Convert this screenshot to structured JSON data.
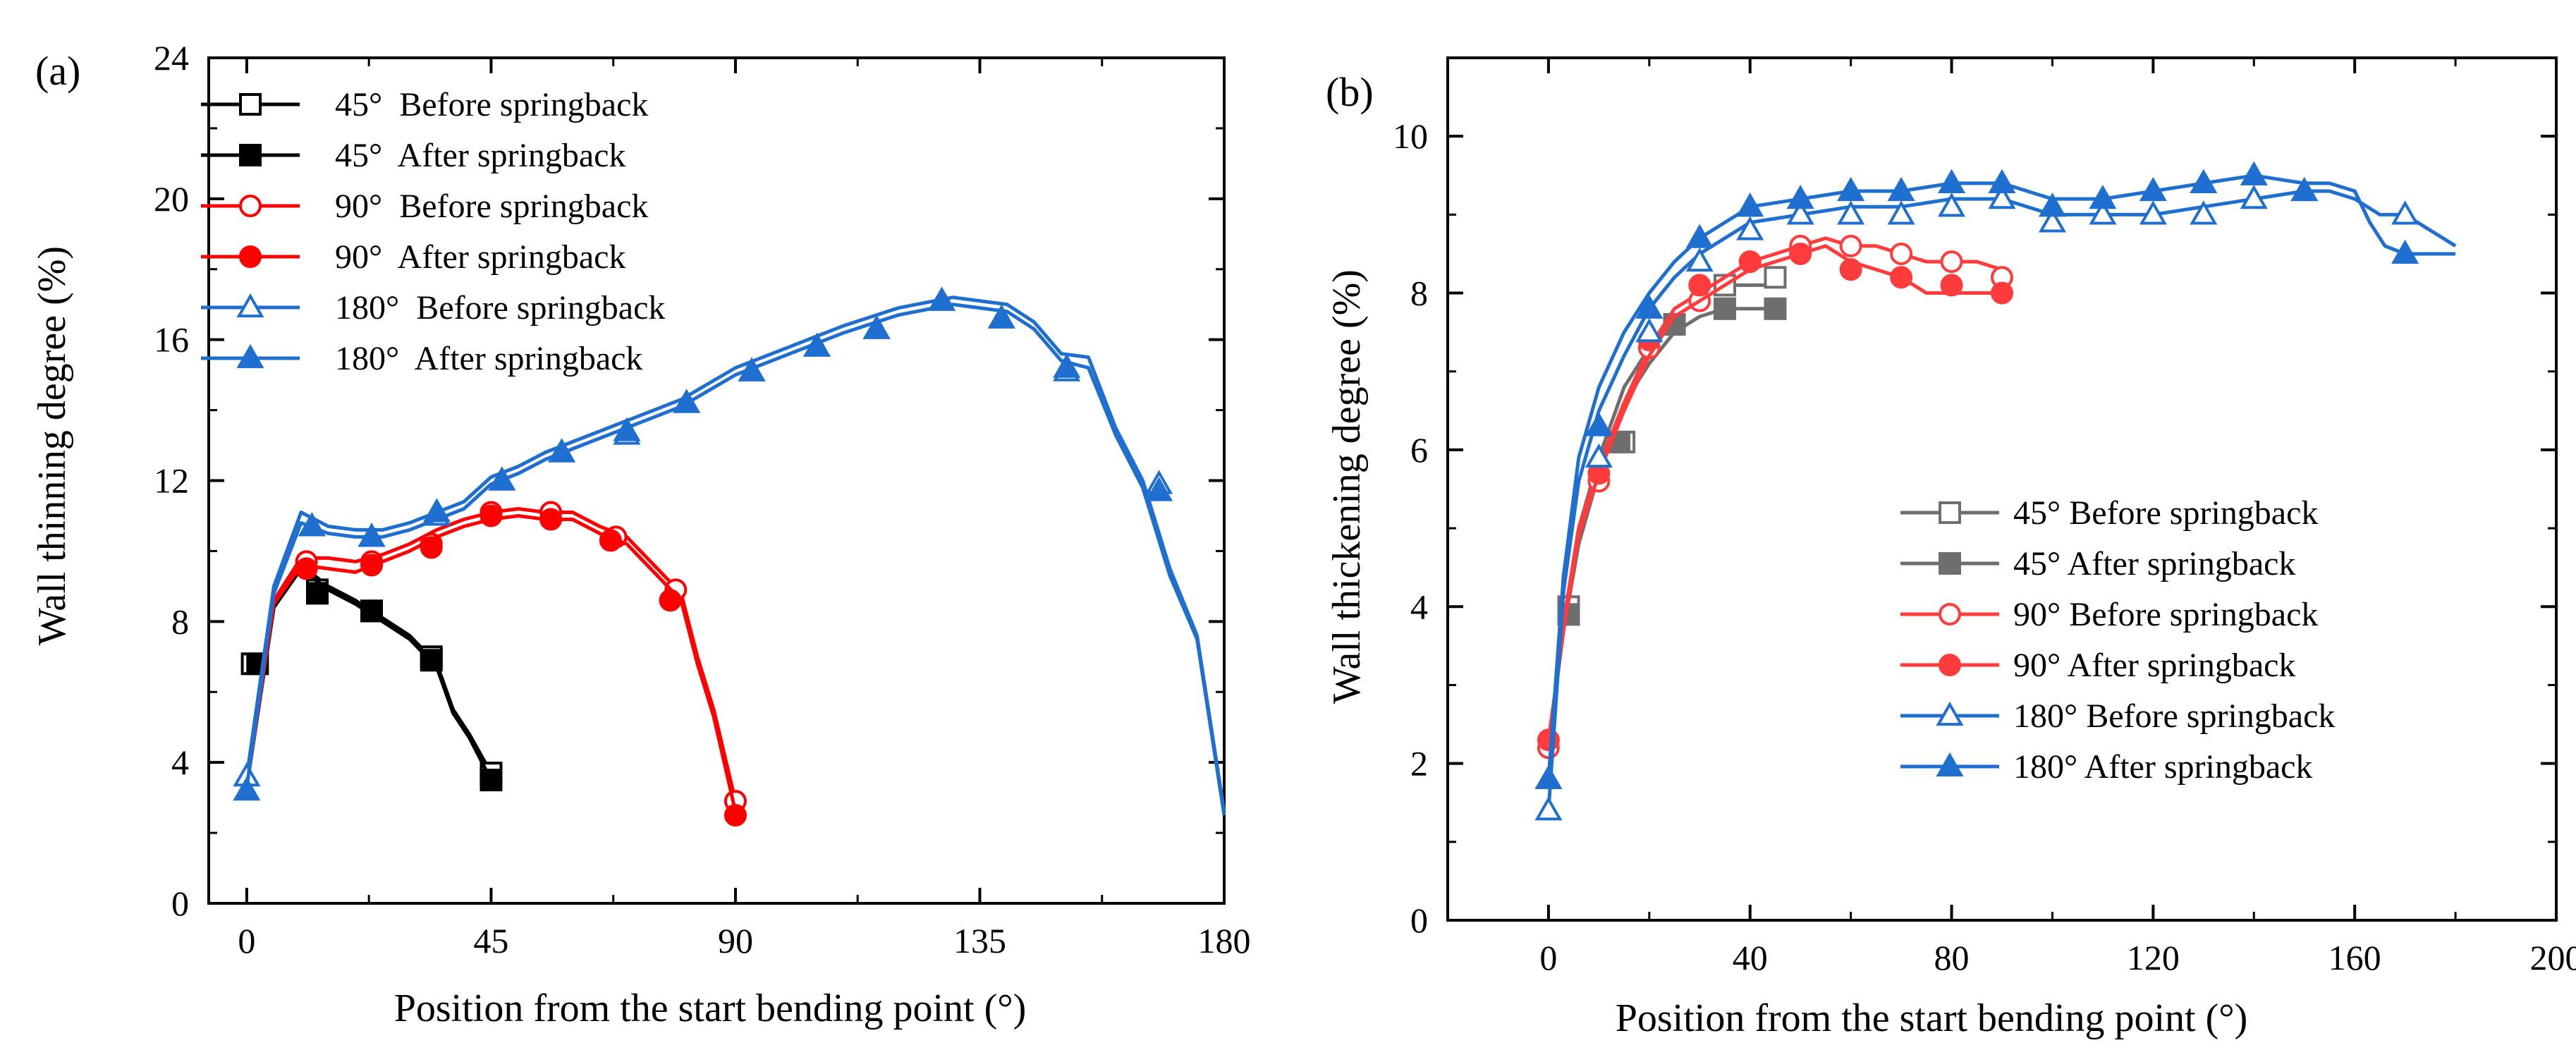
{
  "chart_data": [
    {
      "type": "line",
      "panel_label": "(a)",
      "xlabel": "Position from the start bending point (°)",
      "ylabel": "Wall thinning degree (%)",
      "xlim": [
        -7,
        180
      ],
      "ylim": [
        0,
        24
      ],
      "xticks": [
        0,
        45,
        90,
        135,
        180
      ],
      "yticks": [
        0,
        4,
        8,
        12,
        16,
        20,
        24
      ],
      "grid": false,
      "legend_position": "top-left",
      "series": [
        {
          "name": "45°  Before springback",
          "color": "#000000",
          "marker": "square",
          "filled": false,
          "x": [
            0,
            5,
            10,
            15,
            20,
            25,
            30,
            35,
            38,
            41,
            45
          ],
          "y": [
            3.4,
            8.5,
            9.6,
            9.0,
            8.6,
            8.1,
            7.6,
            6.8,
            5.5,
            4.8,
            3.7
          ]
        },
        {
          "name": "45°  After springback",
          "color": "#000000",
          "marker": "square",
          "filled": true,
          "x": [
            0,
            5,
            10,
            15,
            20,
            25,
            30,
            35,
            38,
            41,
            45
          ],
          "y": [
            3.3,
            8.4,
            9.5,
            8.9,
            8.5,
            8.0,
            7.5,
            6.7,
            5.4,
            4.7,
            3.5
          ]
        },
        {
          "name": "90°  Before springback",
          "color": "#ff0000",
          "marker": "circle",
          "filled": false,
          "x": [
            0,
            5,
            10,
            15,
            20,
            25,
            30,
            35,
            40,
            45,
            50,
            55,
            60,
            65,
            70,
            75,
            80,
            83,
            86,
            90
          ],
          "y": [
            3.4,
            8.6,
            9.8,
            9.8,
            9.7,
            9.9,
            10.2,
            10.6,
            10.9,
            11.1,
            11.2,
            11.1,
            11.1,
            10.7,
            10.4,
            9.6,
            8.8,
            7.0,
            5.5,
            2.9
          ]
        },
        {
          "name": "90°  After springback",
          "color": "#ff0000",
          "marker": "circle",
          "filled": true,
          "x": [
            0,
            5,
            10,
            15,
            20,
            25,
            30,
            35,
            40,
            45,
            50,
            55,
            60,
            65,
            70,
            75,
            80,
            83,
            86,
            90
          ],
          "y": [
            3.3,
            8.5,
            9.6,
            9.5,
            9.4,
            9.7,
            10.0,
            10.4,
            10.7,
            10.9,
            11.0,
            10.9,
            10.9,
            10.5,
            10.2,
            9.4,
            8.6,
            6.8,
            5.3,
            2.6
          ]
        },
        {
          "name": "180°  Before springback",
          "color": "#1f6fd0",
          "marker": "triangle",
          "filled": false,
          "x": [
            0,
            5,
            10,
            15,
            20,
            25,
            30,
            35,
            40,
            45,
            50,
            55,
            60,
            70,
            80,
            90,
            100,
            110,
            120,
            130,
            140,
            145,
            150,
            155,
            160,
            165,
            170,
            175,
            180
          ],
          "y": [
            3.6,
            9.0,
            11.1,
            10.7,
            10.6,
            10.6,
            10.8,
            11.1,
            11.4,
            12.1,
            12.4,
            12.8,
            13.1,
            13.7,
            14.3,
            15.2,
            15.8,
            16.4,
            16.9,
            17.2,
            17.0,
            16.5,
            15.6,
            15.5,
            13.5,
            12.0,
            9.5,
            7.6,
            2.6
          ]
        },
        {
          "name": "180°  After springback",
          "color": "#1f6fd0",
          "marker": "triangle",
          "filled": true,
          "x": [
            0,
            5,
            10,
            15,
            20,
            25,
            30,
            35,
            40,
            45,
            50,
            55,
            60,
            70,
            80,
            90,
            100,
            110,
            120,
            130,
            140,
            145,
            150,
            155,
            160,
            165,
            170,
            175,
            180
          ],
          "y": [
            3.3,
            8.8,
            10.8,
            10.5,
            10.4,
            10.4,
            10.6,
            10.9,
            11.2,
            11.9,
            12.2,
            12.6,
            12.9,
            13.5,
            14.1,
            15.0,
            15.6,
            16.2,
            16.7,
            17.0,
            16.8,
            16.3,
            15.4,
            15.2,
            13.3,
            11.8,
            9.3,
            7.5,
            2.5
          ]
        }
      ],
      "markers": {
        "45°  Before springback": {
          "x": [
            1,
            13,
            23,
            34,
            45
          ],
          "y": [
            6.8,
            8.9,
            8.3,
            7.0,
            3.7
          ]
        },
        "45°  After springback": {
          "x": [
            2,
            13,
            23,
            34,
            45
          ],
          "y": [
            6.8,
            8.8,
            8.3,
            6.9,
            3.5
          ]
        },
        "90°  Before springback": {
          "x": [
            11,
            23,
            34,
            45,
            56,
            68,
            79,
            90
          ],
          "y": [
            9.7,
            9.7,
            10.2,
            11.1,
            11.1,
            10.4,
            8.9,
            2.9
          ]
        },
        "90°  After springback": {
          "x": [
            11,
            23,
            34,
            45,
            56,
            67,
            78,
            90
          ],
          "y": [
            9.5,
            9.6,
            10.1,
            11.0,
            10.9,
            10.3,
            8.6,
            2.5
          ]
        },
        "180°  Before springback": {
          "x": [
            0,
            12,
            23,
            35,
            47,
            58,
            70,
            81,
            93,
            105,
            116,
            128,
            139,
            151,
            168
          ],
          "y": [
            3.6,
            10.7,
            10.4,
            11.0,
            12.0,
            12.8,
            13.3,
            14.2,
            15.1,
            15.8,
            16.3,
            17.1,
            16.6,
            15.1,
            11.9
          ]
        },
        "180°  After springback": {
          "x": [
            0,
            12,
            23,
            35,
            47,
            58,
            70,
            81,
            93,
            105,
            116,
            128,
            139,
            151,
            168
          ],
          "y": [
            3.2,
            10.7,
            10.4,
            11.1,
            12.0,
            12.8,
            13.4,
            14.2,
            15.1,
            15.8,
            16.3,
            17.1,
            16.6,
            15.2,
            11.7
          ]
        }
      }
    },
    {
      "type": "line",
      "panel_label": "(b)",
      "xlabel": "Position from the start bending point (°)",
      "ylabel": "Wall thickening degree (%)",
      "xlim": [
        -20,
        200
      ],
      "ylim": [
        0,
        11
      ],
      "xticks": [
        0,
        40,
        80,
        120,
        160,
        200
      ],
      "yticks": [
        0,
        2,
        4,
        6,
        8,
        10
      ],
      "grid": false,
      "legend_position": "bottom-right",
      "series": [
        {
          "name": "45° Before springback",
          "color": "#6e6e6e",
          "marker": "square",
          "filled": false,
          "x": [
            0,
            3,
            6,
            10,
            15,
            20,
            25,
            30,
            35,
            40,
            45
          ],
          "y": [
            2.2,
            3.8,
            5.0,
            5.9,
            6.8,
            7.3,
            7.7,
            7.9,
            8.1,
            8.1,
            8.1
          ]
        },
        {
          "name": "45° After springback",
          "color": "#6e6e6e",
          "marker": "square",
          "filled": true,
          "x": [
            0,
            3,
            6,
            10,
            15,
            20,
            25,
            30,
            35,
            40,
            45
          ],
          "y": [
            2.2,
            3.7,
            4.8,
            5.7,
            6.6,
            7.1,
            7.5,
            7.7,
            7.8,
            7.8,
            7.8
          ]
        },
        {
          "name": "90° Before springback",
          "color": "#ff3b3b",
          "marker": "circle",
          "filled": false,
          "x": [
            0,
            3,
            6,
            10,
            15,
            20,
            25,
            30,
            35,
            40,
            45,
            50,
            55,
            60,
            65,
            70,
            75,
            80,
            85,
            90
          ],
          "y": [
            2.2,
            3.8,
            5.0,
            5.8,
            6.6,
            7.3,
            7.8,
            8.0,
            8.2,
            8.4,
            8.5,
            8.6,
            8.7,
            8.6,
            8.6,
            8.5,
            8.4,
            8.4,
            8.4,
            8.3
          ]
        },
        {
          "name": "90° After springback",
          "color": "#ff3b3b",
          "marker": "circle",
          "filled": true,
          "x": [
            0,
            3,
            6,
            10,
            15,
            20,
            25,
            30,
            35,
            40,
            45,
            50,
            55,
            60,
            65,
            70,
            75,
            80,
            85,
            90
          ],
          "y": [
            2.3,
            3.7,
            4.9,
            5.7,
            6.5,
            7.2,
            7.7,
            7.9,
            8.1,
            8.3,
            8.4,
            8.5,
            8.6,
            8.4,
            8.3,
            8.2,
            8.0,
            8.0,
            8.0,
            8.0
          ]
        },
        {
          "name": "180° Before springback",
          "color": "#1f6fd0",
          "marker": "triangle",
          "filled": false,
          "x": [
            0,
            3,
            6,
            10,
            15,
            20,
            25,
            30,
            35,
            40,
            50,
            60,
            70,
            80,
            90,
            100,
            110,
            120,
            130,
            140,
            150,
            155,
            160,
            165,
            170,
            175,
            180
          ],
          "y": [
            1.4,
            4.2,
            5.6,
            6.5,
            7.2,
            7.8,
            8.2,
            8.5,
            8.7,
            8.9,
            9.0,
            9.1,
            9.1,
            9.2,
            9.2,
            9.0,
            9.0,
            9.0,
            9.1,
            9.2,
            9.3,
            9.3,
            9.2,
            9.0,
            9.0,
            8.8,
            8.6
          ]
        },
        {
          "name": "180° After springback",
          "color": "#1f6fd0",
          "marker": "triangle",
          "filled": true,
          "x": [
            0,
            3,
            6,
            10,
            15,
            20,
            25,
            30,
            35,
            40,
            50,
            60,
            70,
            80,
            90,
            100,
            110,
            120,
            130,
            140,
            150,
            155,
            160,
            163,
            166,
            170,
            175,
            180
          ],
          "y": [
            1.8,
            4.4,
            5.9,
            6.8,
            7.5,
            8.0,
            8.4,
            8.7,
            8.9,
            9.1,
            9.2,
            9.3,
            9.3,
            9.4,
            9.4,
            9.2,
            9.2,
            9.3,
            9.4,
            9.5,
            9.4,
            9.4,
            9.3,
            8.9,
            8.6,
            8.5,
            8.5,
            8.5
          ]
        }
      ],
      "markers": {
        "45° Before springback": {
          "x": [
            4,
            15,
            25,
            35,
            45
          ],
          "y": [
            4.0,
            6.1,
            7.6,
            8.1,
            8.2
          ]
        },
        "45° After springback": {
          "x": [
            4,
            14,
            25,
            35,
            45
          ],
          "y": [
            3.9,
            6.1,
            7.6,
            7.8,
            7.8
          ]
        },
        "90° Before springback": {
          "x": [
            0,
            10,
            20,
            30,
            40,
            50,
            60,
            70,
            80,
            90
          ],
          "y": [
            2.2,
            5.6,
            7.3,
            7.9,
            8.4,
            8.6,
            8.6,
            8.5,
            8.4,
            8.2
          ]
        },
        "90° After springback": {
          "x": [
            0,
            10,
            20,
            30,
            40,
            50,
            60,
            70,
            80,
            90
          ],
          "y": [
            2.3,
            5.7,
            7.4,
            8.1,
            8.4,
            8.5,
            8.3,
            8.2,
            8.1,
            8.0
          ]
        },
        "180° Before springback": {
          "x": [
            0,
            10,
            20,
            30,
            40,
            50,
            60,
            70,
            80,
            90,
            100,
            110,
            120,
            130,
            140,
            150,
            170
          ],
          "y": [
            1.4,
            5.9,
            7.5,
            8.4,
            8.8,
            9.0,
            9.0,
            9.0,
            9.1,
            9.2,
            8.9,
            9.0,
            9.0,
            9.0,
            9.2,
            9.3,
            9.0
          ]
        },
        "180° After springback": {
          "x": [
            0,
            10,
            20,
            30,
            40,
            50,
            60,
            70,
            80,
            90,
            100,
            110,
            120,
            130,
            140,
            150,
            170
          ],
          "y": [
            1.8,
            6.3,
            7.8,
            8.7,
            9.1,
            9.2,
            9.3,
            9.3,
            9.4,
            9.4,
            9.1,
            9.2,
            9.3,
            9.4,
            9.5,
            9.3,
            8.5
          ]
        }
      }
    }
  ]
}
